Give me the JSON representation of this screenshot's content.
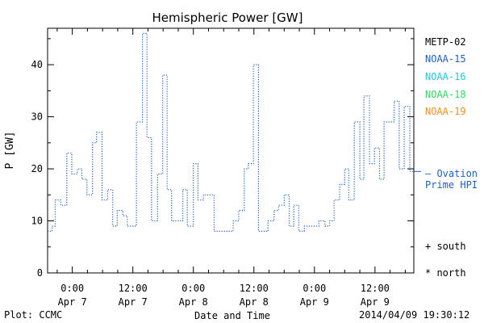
{
  "chart_data": {
    "type": "line",
    "title": "Hemispheric Power [GW]",
    "xlabel": "Date and Time",
    "ylabel": "P [GW]",
    "ylim": [
      0,
      47
    ],
    "yticks": [
      0,
      10,
      20,
      30,
      40
    ],
    "xticks": [
      {
        "t": 0,
        "time": "0:00",
        "date": "Apr 7"
      },
      {
        "t": 12,
        "time": "12:00",
        "date": "Apr 7"
      },
      {
        "t": 24,
        "time": "0:00",
        "date": "Apr 8"
      },
      {
        "t": 36,
        "time": "12:00",
        "date": "Apr 8"
      },
      {
        "t": 48,
        "time": "0:00",
        "date": "Apr 9"
      },
      {
        "t": 60,
        "time": "12:00",
        "date": "Apr 9"
      }
    ],
    "x_unit": "hours since 2014-04-07 00:00 UTC",
    "xlim": [
      -4.9,
      67.7
    ],
    "grid": false,
    "line_style": "dotted step",
    "series": [
      {
        "name": "NOAA-15",
        "color": "#1f5fbf",
        "x": [
          -4.9,
          -4.0,
          -3.4,
          -2.3,
          -1.1,
          -0.1,
          1.0,
          1.9,
          2.9,
          4.0,
          4.8,
          5.9,
          7.0,
          8.0,
          8.9,
          10.0,
          10.9,
          11.8,
          12.7,
          13.9,
          14.8,
          15.7,
          16.9,
          17.9,
          18.8,
          19.7,
          20.8,
          21.9,
          22.8,
          24.0,
          24.9,
          26.0,
          27.1,
          28.1,
          28.9,
          30.1,
          31.0,
          31.9,
          33.0,
          34.1,
          34.9,
          35.9,
          36.9,
          38.0,
          38.8,
          40.0,
          40.9,
          42.0,
          43.0,
          43.9,
          44.9,
          46.0,
          47.1,
          48.1,
          48.9,
          50.1,
          51.0,
          51.9,
          53.0,
          54.0,
          54.8,
          55.9,
          57.0,
          57.8,
          58.9,
          59.9,
          60.9,
          61.8,
          62.9,
          63.8,
          64.8,
          65.8,
          66.9
        ],
        "y": [
          8,
          9,
          14,
          13,
          23,
          19,
          20,
          18,
          15,
          25,
          27,
          14,
          16,
          9,
          12,
          11,
          9,
          9,
          29,
          46,
          26,
          10,
          19,
          38,
          16,
          10,
          10,
          16,
          9,
          21,
          14,
          15,
          15,
          8,
          8,
          8,
          8,
          10,
          12,
          20,
          21,
          40,
          8,
          8,
          10,
          12,
          13,
          15,
          9,
          13,
          8,
          9,
          9,
          9,
          10,
          9,
          10,
          14,
          17,
          20,
          14,
          29,
          18,
          34,
          21,
          24,
          18,
          29,
          29,
          33,
          20,
          32,
          19.5
        ]
      },
      {
        "name": "METP-02",
        "color": "#000000"
      },
      {
        "name": "NOAA-16",
        "color": "#20c8d8"
      },
      {
        "name": "NOAA-18",
        "color": "#30d860"
      },
      {
        "name": "NOAA-19",
        "color": "#f0901a"
      }
    ],
    "reference": {
      "label_lines": [
        "— Ovation",
        "Prime HPI"
      ],
      "value": 19.5,
      "color": "#1f5fbf"
    },
    "markers": [
      "+ south",
      "* north"
    ]
  },
  "footer": {
    "left": "Plot: CCMC",
    "right": "2014/04/09 19:30:12"
  }
}
